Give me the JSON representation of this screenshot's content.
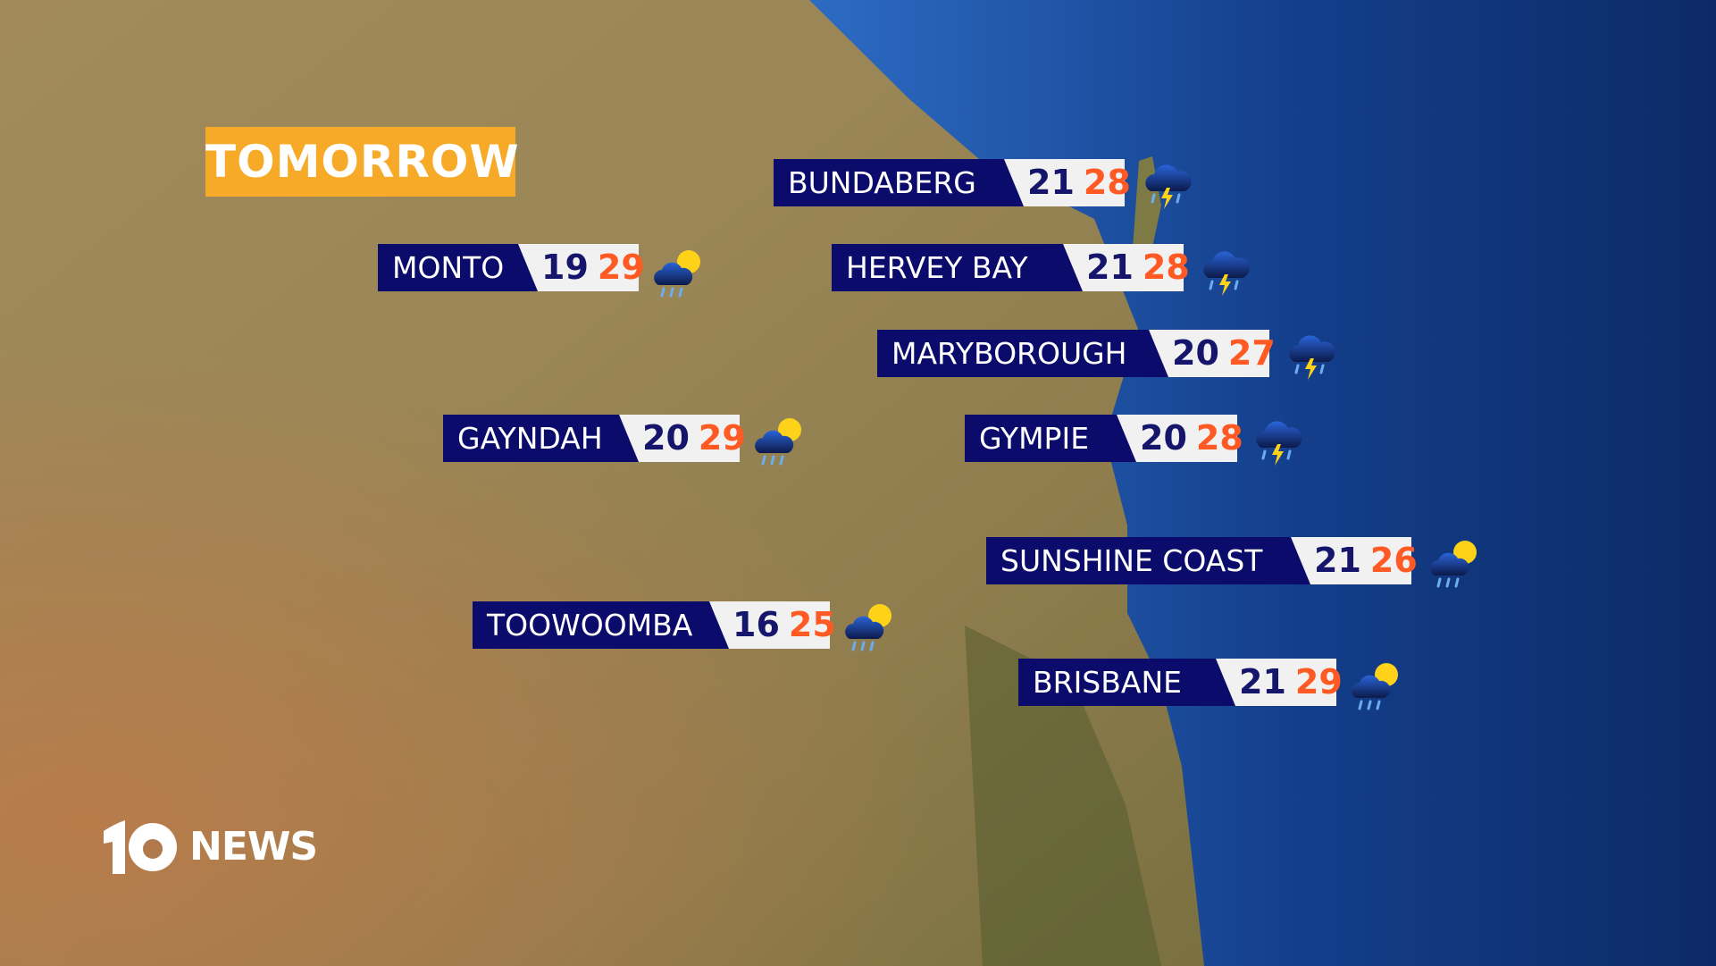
{
  "title": "TOMORROW",
  "brand": {
    "logo_number": "10",
    "logo_text": "NEWS"
  },
  "colors": {
    "label_bg": "#0b0b6b",
    "min_temp": "#15156b",
    "max_temp": "#ff5a23",
    "title_bg": "#f7a928"
  },
  "locations": [
    {
      "name": "BUNDABERG",
      "min": "21",
      "max": "28",
      "icon": "thunderstorm-icon"
    },
    {
      "name": "MONTO",
      "min": "19",
      "max": "29",
      "icon": "showers-sun-icon"
    },
    {
      "name": "HERVEY BAY",
      "min": "21",
      "max": "28",
      "icon": "thunderstorm-icon"
    },
    {
      "name": "MARYBOROUGH",
      "min": "20",
      "max": "27",
      "icon": "thunderstorm-icon"
    },
    {
      "name": "GAYNDAH",
      "min": "20",
      "max": "29",
      "icon": "showers-sun-icon"
    },
    {
      "name": "GYMPIE",
      "min": "20",
      "max": "28",
      "icon": "thunderstorm-icon"
    },
    {
      "name": "SUNSHINE COAST",
      "min": "21",
      "max": "26",
      "icon": "showers-sun-icon"
    },
    {
      "name": "TOOWOOMBA",
      "min": "16",
      "max": "25",
      "icon": "showers-sun-icon"
    },
    {
      "name": "BRISBANE",
      "min": "21",
      "max": "29",
      "icon": "showers-sun-icon"
    }
  ]
}
